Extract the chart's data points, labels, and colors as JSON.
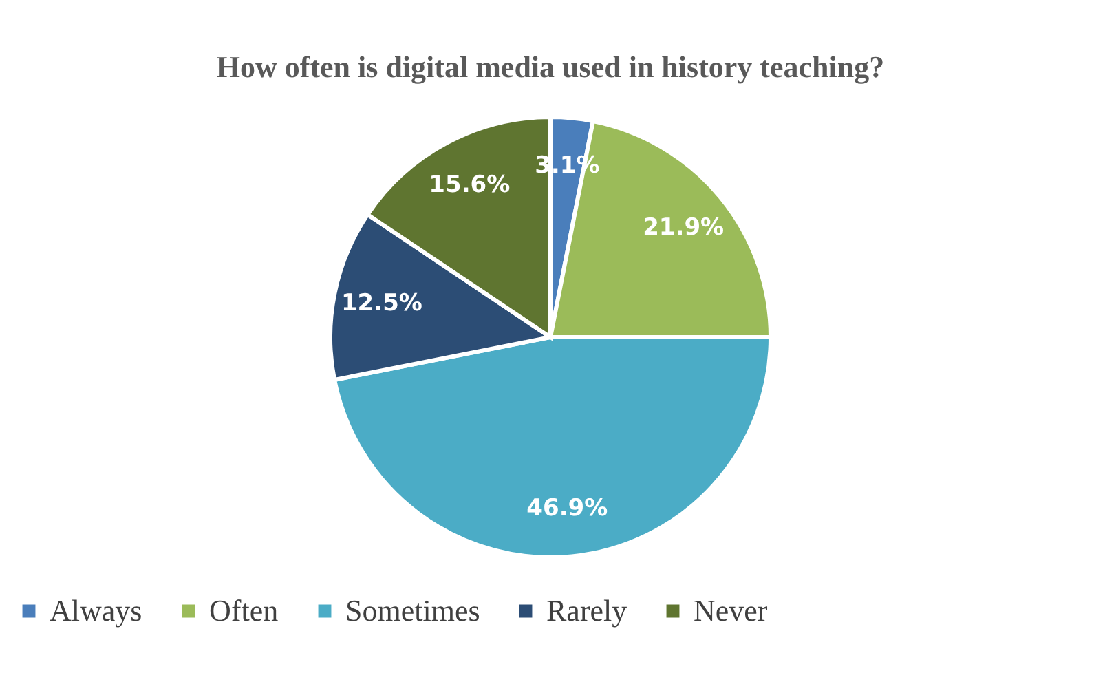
{
  "chart_data": {
    "type": "pie",
    "title": "How often is digital media used in history teaching?",
    "categories": [
      "Always",
      "Often",
      "Sometimes",
      "Rarely",
      "Never"
    ],
    "values": [
      3.1,
      21.9,
      46.9,
      12.5,
      15.6
    ],
    "value_labels": [
      "3.1%",
      "21.9%",
      "46.9%",
      "12.5%",
      "15.6%"
    ],
    "colors": [
      "#4a7ebb",
      "#9bbb59",
      "#4bacc6",
      "#2c4d75",
      "#5f7530"
    ],
    "legend": "bottom"
  }
}
